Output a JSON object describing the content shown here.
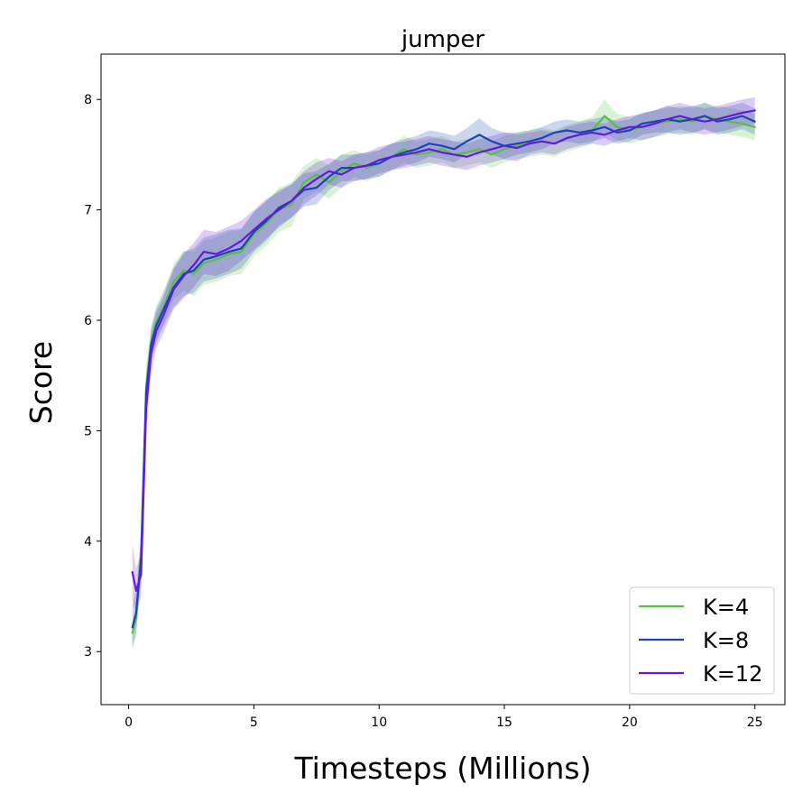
{
  "chart_data": {
    "type": "line",
    "title": "jumper",
    "xlabel": "Timesteps (Millions)",
    "ylabel": "Score",
    "xlim": [
      -1.1,
      26.2
    ],
    "ylim": [
      2.52,
      8.41
    ],
    "xticks": [
      0,
      5,
      10,
      15,
      20,
      25
    ],
    "yticks": [
      3,
      4,
      5,
      6,
      7,
      8
    ],
    "grid": false,
    "legend_position": "lower-right",
    "series": [
      {
        "name": "K=4",
        "color": "#55c23f",
        "x": [
          0.15,
          0.3,
          0.5,
          0.7,
          0.9,
          1.1,
          1.4,
          1.8,
          2.2,
          2.6,
          3.0,
          3.5,
          4.0,
          4.5,
          5.0,
          5.5,
          6.0,
          6.5,
          7.0,
          7.5,
          8.0,
          8.5,
          9.0,
          9.5,
          10.0,
          10.5,
          11.0,
          11.5,
          12.0,
          12.5,
          13.0,
          13.5,
          14.0,
          14.5,
          15.0,
          15.5,
          16.0,
          16.5,
          17.0,
          17.5,
          18.0,
          18.5,
          19.0,
          19.5,
          20.0,
          20.5,
          21.0,
          21.5,
          22.0,
          22.5,
          23.0,
          23.5,
          24.0,
          24.5,
          25.0
        ],
        "values": [
          3.17,
          3.3,
          3.9,
          5.4,
          5.8,
          5.98,
          6.12,
          6.35,
          6.45,
          6.42,
          6.52,
          6.55,
          6.6,
          6.62,
          6.78,
          6.88,
          7.0,
          7.05,
          7.25,
          7.32,
          7.25,
          7.35,
          7.42,
          7.38,
          7.42,
          7.48,
          7.55,
          7.5,
          7.52,
          7.55,
          7.5,
          7.52,
          7.55,
          7.5,
          7.55,
          7.58,
          7.6,
          7.62,
          7.6,
          7.65,
          7.68,
          7.72,
          7.85,
          7.75,
          7.72,
          7.75,
          7.78,
          7.8,
          7.82,
          7.8,
          7.85,
          7.82,
          7.8,
          7.78,
          7.75
        ],
        "band": [
          0.12,
          0.12,
          0.18,
          0.18,
          0.15,
          0.15,
          0.15,
          0.16,
          0.18,
          0.2,
          0.2,
          0.2,
          0.2,
          0.2,
          0.2,
          0.2,
          0.2,
          0.2,
          0.15,
          0.15,
          0.15,
          0.15,
          0.12,
          0.12,
          0.12,
          0.12,
          0.12,
          0.12,
          0.12,
          0.12,
          0.12,
          0.12,
          0.12,
          0.12,
          0.12,
          0.12,
          0.12,
          0.12,
          0.12,
          0.12,
          0.12,
          0.12,
          0.15,
          0.12,
          0.12,
          0.12,
          0.12,
          0.12,
          0.12,
          0.12,
          0.12,
          0.12,
          0.12,
          0.12,
          0.12
        ]
      },
      {
        "name": "K=8",
        "color": "#1c44b4",
        "x": [
          0.15,
          0.3,
          0.5,
          0.7,
          0.9,
          1.1,
          1.4,
          1.8,
          2.2,
          2.6,
          3.0,
          3.5,
          4.0,
          4.5,
          5.0,
          5.5,
          6.0,
          6.5,
          7.0,
          7.5,
          8.0,
          8.5,
          9.0,
          9.5,
          10.0,
          10.5,
          11.0,
          11.5,
          12.0,
          12.5,
          13.0,
          13.5,
          14.0,
          14.5,
          15.0,
          15.5,
          16.0,
          16.5,
          17.0,
          17.5,
          18.0,
          18.5,
          19.0,
          19.5,
          20.0,
          20.5,
          21.0,
          21.5,
          22.0,
          22.5,
          23.0,
          23.5,
          24.0,
          24.5,
          25.0
        ],
        "values": [
          3.22,
          3.35,
          3.85,
          5.35,
          5.78,
          5.95,
          6.1,
          6.3,
          6.42,
          6.45,
          6.55,
          6.58,
          6.62,
          6.65,
          6.8,
          6.9,
          7.02,
          7.08,
          7.18,
          7.2,
          7.3,
          7.38,
          7.38,
          7.4,
          7.42,
          7.48,
          7.52,
          7.55,
          7.6,
          7.58,
          7.55,
          7.62,
          7.68,
          7.62,
          7.58,
          7.6,
          7.62,
          7.65,
          7.7,
          7.72,
          7.7,
          7.72,
          7.75,
          7.7,
          7.72,
          7.78,
          7.8,
          7.82,
          7.8,
          7.82,
          7.85,
          7.8,
          7.82,
          7.85,
          7.8
        ],
        "band": [
          0.2,
          0.2,
          0.2,
          0.18,
          0.15,
          0.15,
          0.15,
          0.18,
          0.2,
          0.2,
          0.2,
          0.2,
          0.2,
          0.18,
          0.18,
          0.18,
          0.16,
          0.15,
          0.15,
          0.15,
          0.12,
          0.12,
          0.12,
          0.12,
          0.12,
          0.12,
          0.12,
          0.12,
          0.12,
          0.12,
          0.12,
          0.12,
          0.15,
          0.12,
          0.12,
          0.1,
          0.1,
          0.1,
          0.1,
          0.1,
          0.1,
          0.1,
          0.1,
          0.1,
          0.1,
          0.1,
          0.1,
          0.12,
          0.12,
          0.12,
          0.12,
          0.12,
          0.12,
          0.12,
          0.12
        ]
      },
      {
        "name": "K=12",
        "color": "#6519dd",
        "x": [
          0.15,
          0.3,
          0.5,
          0.7,
          0.9,
          1.1,
          1.4,
          1.8,
          2.2,
          2.6,
          3.0,
          3.5,
          4.0,
          4.5,
          5.0,
          5.5,
          6.0,
          6.5,
          7.0,
          7.5,
          8.0,
          8.5,
          9.0,
          9.5,
          10.0,
          10.5,
          11.0,
          11.5,
          12.0,
          12.5,
          13.0,
          13.5,
          14.0,
          14.5,
          15.0,
          15.5,
          16.0,
          16.5,
          17.0,
          17.5,
          18.0,
          18.5,
          19.0,
          19.5,
          20.0,
          20.5,
          21.0,
          21.5,
          22.0,
          22.5,
          23.0,
          23.5,
          24.0,
          24.5,
          25.0
        ],
        "values": [
          3.72,
          3.55,
          3.7,
          5.2,
          5.7,
          5.9,
          6.05,
          6.28,
          6.4,
          6.5,
          6.62,
          6.6,
          6.65,
          6.72,
          6.82,
          6.92,
          7.0,
          7.08,
          7.2,
          7.28,
          7.35,
          7.32,
          7.38,
          7.4,
          7.45,
          7.48,
          7.5,
          7.52,
          7.55,
          7.52,
          7.5,
          7.48,
          7.52,
          7.55,
          7.58,
          7.56,
          7.6,
          7.62,
          7.6,
          7.65,
          7.68,
          7.7,
          7.68,
          7.72,
          7.75,
          7.75,
          7.78,
          7.82,
          7.85,
          7.82,
          7.8,
          7.82,
          7.85,
          7.88,
          7.9
        ],
        "band": [
          0.25,
          0.2,
          0.2,
          0.2,
          0.18,
          0.16,
          0.16,
          0.18,
          0.2,
          0.2,
          0.2,
          0.2,
          0.2,
          0.18,
          0.18,
          0.18,
          0.16,
          0.15,
          0.15,
          0.15,
          0.12,
          0.12,
          0.12,
          0.12,
          0.12,
          0.12,
          0.12,
          0.12,
          0.12,
          0.12,
          0.12,
          0.12,
          0.12,
          0.12,
          0.12,
          0.12,
          0.1,
          0.1,
          0.1,
          0.1,
          0.1,
          0.1,
          0.1,
          0.1,
          0.1,
          0.12,
          0.12,
          0.12,
          0.12,
          0.12,
          0.12,
          0.12,
          0.12,
          0.12,
          0.12
        ]
      }
    ]
  }
}
